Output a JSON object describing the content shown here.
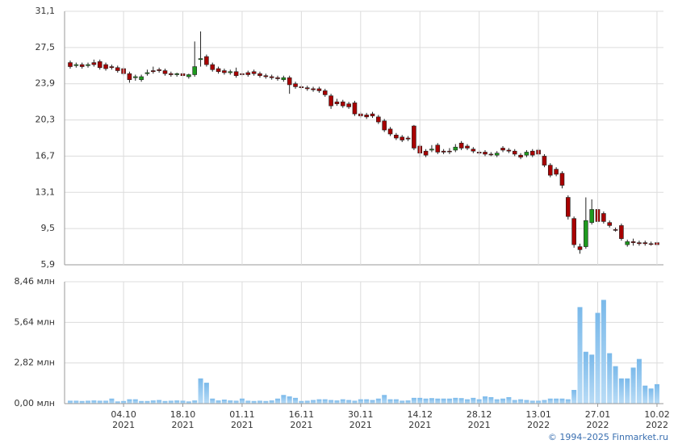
{
  "chart_data": [
    {
      "type": "candlestick",
      "ylim": [
        5.9,
        31.1
      ],
      "yticks": [
        {
          "value": 5.9,
          "label": "5,9"
        },
        {
          "value": 9.5,
          "label": "9,5"
        },
        {
          "value": 13.1,
          "label": "13,1"
        },
        {
          "value": 16.7,
          "label": "16,7"
        },
        {
          "value": 20.3,
          "label": "20,3"
        },
        {
          "value": 23.9,
          "label": "23,9"
        },
        {
          "value": 27.5,
          "label": "27,5"
        },
        {
          "value": 31.1,
          "label": "31,1"
        }
      ],
      "grid": true,
      "up_color": "#1e9a1e",
      "down_color": "#a80000",
      "open": [
        26.0,
        25.7,
        25.8,
        25.7,
        26.0,
        26.1,
        25.8,
        25.6,
        25.5,
        25.4,
        24.9,
        24.5,
        24.3,
        24.9,
        25.2,
        25.3,
        25.2,
        24.9,
        24.8,
        24.9,
        24.6,
        24.8,
        26.3,
        26.6,
        25.8,
        25.4,
        25.2,
        25.0,
        25.1,
        24.9,
        25.0,
        25.1,
        24.9,
        24.7,
        24.6,
        24.5,
        24.3,
        24.5,
        23.9,
        23.6,
        23.5,
        23.4,
        23.4,
        23.2,
        22.7,
        22.1,
        22.1,
        21.9,
        22.0,
        20.9,
        20.8,
        20.9,
        20.6,
        20.2,
        19.4,
        18.8,
        18.6,
        18.5,
        19.7,
        17.7,
        17.2,
        17.3,
        17.8,
        17.2,
        17.2,
        17.3,
        18.0,
        17.7,
        17.4,
        17.1,
        17.1,
        16.9,
        16.8,
        17.5,
        17.3,
        17.2,
        16.8,
        16.8,
        17.2,
        17.3,
        16.7,
        15.8,
        15.4,
        15.0,
        12.6,
        10.5,
        7.7,
        7.7,
        10.1,
        11.4,
        11.0,
        10.1,
        9.4,
        9.8,
        7.9,
        8.2,
        8.1,
        8.1,
        8.0,
        8.1
      ],
      "high": [
        26.2,
        26.0,
        26.0,
        26.0,
        26.3,
        26.3,
        26.0,
        25.8,
        25.7,
        25.6,
        25.1,
        24.8,
        24.8,
        25.3,
        25.6,
        25.5,
        25.4,
        25.1,
        25.0,
        25.1,
        24.9,
        28.1,
        29.1,
        26.8,
        26.0,
        25.6,
        25.4,
        25.3,
        25.5,
        25.1,
        25.2,
        25.3,
        25.1,
        24.9,
        24.8,
        24.7,
        24.7,
        24.7,
        24.1,
        23.8,
        23.7,
        23.6,
        23.6,
        23.4,
        22.9,
        22.4,
        22.3,
        22.1,
        22.2,
        21.1,
        21.0,
        21.1,
        20.8,
        20.4,
        19.6,
        19.0,
        18.8,
        18.7,
        19.8,
        17.9,
        17.4,
        17.8,
        18.0,
        17.4,
        17.5,
        17.9,
        18.2,
        17.9,
        17.6,
        17.3,
        17.3,
        17.1,
        17.2,
        17.7,
        17.5,
        17.4,
        17.0,
        17.3,
        17.4,
        17.5,
        16.9,
        16.0,
        15.6,
        15.2,
        12.8,
        10.7,
        8.0,
        12.6,
        12.4,
        11.6,
        11.2,
        10.3,
        9.6,
        10.0,
        8.4,
        8.5,
        8.3,
        8.3,
        8.2,
        8.3
      ],
      "low": [
        25.4,
        25.5,
        25.4,
        25.5,
        25.6,
        25.3,
        25.2,
        25.3,
        25.0,
        24.7,
        24.0,
        24.2,
        24.1,
        24.7,
        24.9,
        25.0,
        24.7,
        24.6,
        24.6,
        24.5,
        24.4,
        24.6,
        25.6,
        25.6,
        25.1,
        24.9,
        24.8,
        24.8,
        24.5,
        24.6,
        24.6,
        24.7,
        24.5,
        24.4,
        24.3,
        24.2,
        24.1,
        22.9,
        23.4,
        23.3,
        23.2,
        23.1,
        23.0,
        22.6,
        21.4,
        21.7,
        21.5,
        21.4,
        20.7,
        20.5,
        20.4,
        20.5,
        19.9,
        19.1,
        18.7,
        18.3,
        18.1,
        18.2,
        17.3,
        16.6,
        16.6,
        17.1,
        16.9,
        16.9,
        16.9,
        17.1,
        17.3,
        17.3,
        17.0,
        16.8,
        16.7,
        16.7,
        16.6,
        17.1,
        17.0,
        16.7,
        16.4,
        16.6,
        16.6,
        16.7,
        15.6,
        14.6,
        14.7,
        13.5,
        10.4,
        7.6,
        7.0,
        7.5,
        9.9,
        10.0,
        10.0,
        9.6,
        9.2,
        8.3,
        7.7,
        7.8,
        7.8,
        7.8,
        7.8,
        7.7
      ],
      "close": [
        25.6,
        25.8,
        25.6,
        25.8,
        25.8,
        25.5,
        25.4,
        25.5,
        25.2,
        24.9,
        24.3,
        24.6,
        24.6,
        25.0,
        25.1,
        25.2,
        24.9,
        24.8,
        24.9,
        24.7,
        24.8,
        25.6,
        26.4,
        25.8,
        25.3,
        25.1,
        25.0,
        25.1,
        24.7,
        24.8,
        24.8,
        24.9,
        24.7,
        24.6,
        24.5,
        24.4,
        24.5,
        23.8,
        23.6,
        23.5,
        23.4,
        23.3,
        23.2,
        22.8,
        21.7,
        21.9,
        21.7,
        21.6,
        20.9,
        20.7,
        20.6,
        20.7,
        20.1,
        19.3,
        18.9,
        18.5,
        18.3,
        18.4,
        17.5,
        17.0,
        16.8,
        17.4,
        17.1,
        17.1,
        17.2,
        17.6,
        17.5,
        17.5,
        17.2,
        17.0,
        16.9,
        16.9,
        17.0,
        17.3,
        17.2,
        16.9,
        16.6,
        17.1,
        16.8,
        16.9,
        15.8,
        14.8,
        14.9,
        13.8,
        10.7,
        7.9,
        7.4,
        10.3,
        11.4,
        10.2,
        10.2,
        9.8,
        9.4,
        8.5,
        8.2,
        8.1,
        8.0,
        8.0,
        8.0,
        7.9
      ]
    },
    {
      "type": "bar",
      "color": "#8cc6f0",
      "ylim": [
        0,
        8.46
      ],
      "yticks": [
        {
          "value": 0,
          "label": "0,00 млн"
        },
        {
          "value": 2.82,
          "label": "2,82 млн"
        },
        {
          "value": 5.64,
          "label": "5,64 млн"
        },
        {
          "value": 8.46,
          "label": "8,46 млн"
        }
      ],
      "categories": [
        null,
        null,
        null,
        null,
        null,
        null,
        null,
        null,
        null,
        "04.10 2021",
        null,
        null,
        null,
        null,
        null,
        null,
        null,
        null,
        null,
        "18.10 2021",
        null,
        null,
        null,
        null,
        null,
        null,
        null,
        null,
        null,
        "01.11 2021",
        null,
        null,
        null,
        null,
        null,
        null,
        null,
        null,
        null,
        "16.11 2021",
        null,
        null,
        null,
        null,
        null,
        null,
        null,
        null,
        null,
        "30.11 2021",
        null,
        null,
        null,
        null,
        null,
        null,
        null,
        null,
        null,
        "14.12 2021",
        null,
        null,
        null,
        null,
        null,
        null,
        null,
        null,
        null,
        "28.12 2021",
        null,
        null,
        null,
        null,
        null,
        null,
        null,
        null,
        null,
        "13.01 2022",
        null,
        null,
        null,
        null,
        null,
        null,
        null,
        null,
        null,
        "27.01 2022",
        null,
        null,
        null,
        null,
        null,
        null,
        null,
        null,
        null,
        "10.02 2022"
      ],
      "values": [
        0.2,
        0.2,
        0.18,
        0.2,
        0.22,
        0.2,
        0.2,
        0.35,
        0.15,
        0.18,
        0.3,
        0.3,
        0.18,
        0.18,
        0.22,
        0.25,
        0.18,
        0.2,
        0.22,
        0.2,
        0.15,
        0.22,
        1.75,
        1.45,
        0.35,
        0.22,
        0.28,
        0.22,
        0.2,
        0.35,
        0.2,
        0.18,
        0.2,
        0.18,
        0.22,
        0.35,
        0.6,
        0.5,
        0.4,
        0.18,
        0.2,
        0.25,
        0.3,
        0.3,
        0.25,
        0.22,
        0.3,
        0.25,
        0.2,
        0.3,
        0.3,
        0.25,
        0.35,
        0.6,
        0.3,
        0.3,
        0.2,
        0.22,
        0.4,
        0.4,
        0.35,
        0.38,
        0.35,
        0.35,
        0.35,
        0.4,
        0.38,
        0.3,
        0.4,
        0.3,
        0.5,
        0.45,
        0.3,
        0.35,
        0.45,
        0.25,
        0.3,
        0.25,
        0.2,
        0.2,
        0.25,
        0.35,
        0.35,
        0.35,
        0.3,
        0.95,
        6.7,
        3.6,
        3.4,
        6.3,
        7.2,
        3.5,
        2.6,
        1.75,
        1.75,
        2.5,
        3.1,
        1.25,
        1.05,
        1.35
      ]
    },
    {
      "type": "footer",
      "copyright": "© 1994–2025 Finmarket.ru"
    }
  ]
}
